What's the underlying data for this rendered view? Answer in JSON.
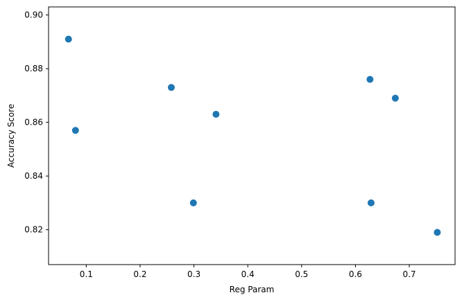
{
  "chart_data": {
    "type": "scatter",
    "title": "",
    "xlabel": "Reg Param",
    "ylabel": "Accuracy Score",
    "xlim": [
      0.03,
      0.785
    ],
    "ylim": [
      0.807,
      0.903
    ],
    "xticks": [
      0.1,
      0.2,
      0.3,
      0.4,
      0.5,
      0.6,
      0.7
    ],
    "xtick_labels": [
      "0.1",
      "0.2",
      "0.3",
      "0.4",
      "0.5",
      "0.6",
      "0.7"
    ],
    "yticks": [
      0.82,
      0.84,
      0.86,
      0.88,
      0.9
    ],
    "ytick_labels": [
      "0.82",
      "0.84",
      "0.86",
      "0.88",
      "0.90"
    ],
    "grid": false,
    "marker_color": "#1f77b4",
    "points": [
      {
        "x": 0.067,
        "y": 0.891
      },
      {
        "x": 0.08,
        "y": 0.857
      },
      {
        "x": 0.258,
        "y": 0.873
      },
      {
        "x": 0.299,
        "y": 0.83
      },
      {
        "x": 0.341,
        "y": 0.863
      },
      {
        "x": 0.627,
        "y": 0.876
      },
      {
        "x": 0.629,
        "y": 0.83
      },
      {
        "x": 0.674,
        "y": 0.869
      },
      {
        "x": 0.752,
        "y": 0.819
      }
    ]
  }
}
